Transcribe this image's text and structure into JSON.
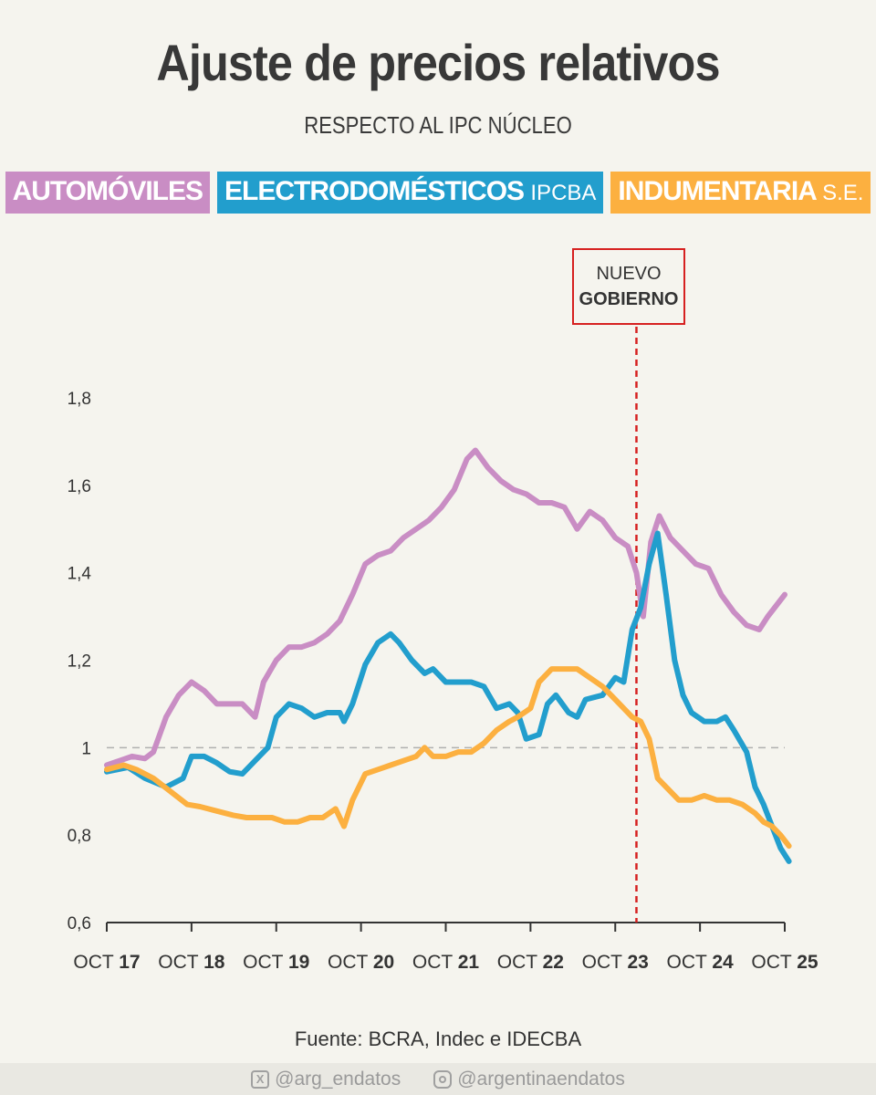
{
  "header": {
    "title": "Ajuste de precios relativos",
    "subtitle": "RESPECTO AL IPC NÚCLEO"
  },
  "legend": [
    {
      "name": "AUTOMÓVILES",
      "suffix": "",
      "color": "#c98dc4"
    },
    {
      "name": "ELECTRODOMÉSTICOS",
      "suffix": "IPCBA",
      "color": "#229ecd"
    },
    {
      "name": "INDUMENTARIA",
      "suffix": "S.E.",
      "color": "#fcb040"
    }
  ],
  "annotation": {
    "line1": "NUEVO",
    "line2": "GOBIERNO",
    "color": "#d62020"
  },
  "source": "Fuente: BCRA, Indec e IDECBA",
  "footer": {
    "twitter": "@arg_endatos",
    "instagram": "@argentinaendatos",
    "twitter_icon": "x-icon",
    "instagram_icon": "instagram-icon"
  },
  "chart_data": {
    "type": "line",
    "xlim": [
      2017.75,
      2025.75
    ],
    "ylim": [
      0.6,
      1.8
    ],
    "yticks": [
      {
        "value": 0.6,
        "label": "0,6"
      },
      {
        "value": 0.8,
        "label": "0,8"
      },
      {
        "value": 1.0,
        "label": "1"
      },
      {
        "value": 1.2,
        "label": "1,2"
      },
      {
        "value": 1.4,
        "label": "1,4"
      },
      {
        "value": 1.6,
        "label": "1,6"
      },
      {
        "value": 1.8,
        "label": "1,8"
      }
    ],
    "xticks": [
      {
        "value": 2017.75,
        "pre": "OCT ",
        "year": "17"
      },
      {
        "value": 2018.75,
        "pre": "OCT ",
        "year": "18"
      },
      {
        "value": 2019.75,
        "pre": "OCT ",
        "year": "19"
      },
      {
        "value": 2020.75,
        "pre": "OCT ",
        "year": "20"
      },
      {
        "value": 2021.75,
        "pre": "OCT ",
        "year": "21"
      },
      {
        "value": 2022.75,
        "pre": "OCT ",
        "year": "22"
      },
      {
        "value": 2023.75,
        "pre": "OCT ",
        "year": "23"
      },
      {
        "value": 2024.75,
        "pre": "OCT ",
        "year": "24"
      },
      {
        "value": 2025.75,
        "pre": "OCT ",
        "year": "25"
      }
    ],
    "reference_line": 1.0,
    "event_x": 2024.0,
    "series": [
      {
        "name": "AUTOMÓVILES",
        "color": "#c98dc4",
        "points": [
          [
            2017.75,
            0.96
          ],
          [
            2017.9,
            0.97
          ],
          [
            2018.05,
            0.98
          ],
          [
            2018.2,
            0.975
          ],
          [
            2018.3,
            0.99
          ],
          [
            2018.45,
            1.07
          ],
          [
            2018.6,
            1.12
          ],
          [
            2018.75,
            1.15
          ],
          [
            2018.9,
            1.13
          ],
          [
            2019.05,
            1.1
          ],
          [
            2019.2,
            1.1
          ],
          [
            2019.35,
            1.1
          ],
          [
            2019.5,
            1.07
          ],
          [
            2019.6,
            1.15
          ],
          [
            2019.75,
            1.2
          ],
          [
            2019.9,
            1.23
          ],
          [
            2020.05,
            1.23
          ],
          [
            2020.2,
            1.24
          ],
          [
            2020.35,
            1.26
          ],
          [
            2020.5,
            1.29
          ],
          [
            2020.65,
            1.35
          ],
          [
            2020.8,
            1.42
          ],
          [
            2020.95,
            1.44
          ],
          [
            2021.1,
            1.45
          ],
          [
            2021.25,
            1.48
          ],
          [
            2021.4,
            1.5
          ],
          [
            2021.55,
            1.52
          ],
          [
            2021.7,
            1.55
          ],
          [
            2021.85,
            1.59
          ],
          [
            2022.0,
            1.66
          ],
          [
            2022.1,
            1.68
          ],
          [
            2022.25,
            1.64
          ],
          [
            2022.4,
            1.61
          ],
          [
            2022.55,
            1.59
          ],
          [
            2022.7,
            1.58
          ],
          [
            2022.85,
            1.56
          ],
          [
            2023.0,
            1.56
          ],
          [
            2023.15,
            1.55
          ],
          [
            2023.3,
            1.5
          ],
          [
            2023.45,
            1.54
          ],
          [
            2023.6,
            1.52
          ],
          [
            2023.75,
            1.48
          ],
          [
            2023.9,
            1.46
          ],
          [
            2024.0,
            1.4
          ],
          [
            2024.08,
            1.3
          ],
          [
            2024.17,
            1.47
          ],
          [
            2024.27,
            1.53
          ],
          [
            2024.4,
            1.48
          ],
          [
            2024.55,
            1.45
          ],
          [
            2024.7,
            1.42
          ],
          [
            2024.85,
            1.41
          ],
          [
            2025.0,
            1.35
          ],
          [
            2025.15,
            1.31
          ],
          [
            2025.3,
            1.28
          ],
          [
            2025.45,
            1.27
          ],
          [
            2025.55,
            1.3
          ],
          [
            2025.75,
            1.35
          ]
        ]
      },
      {
        "name": "ELECTRODOMÉSTICOS IPCBA",
        "color": "#229ecd",
        "points": [
          [
            2017.75,
            0.945
          ],
          [
            2018.0,
            0.955
          ],
          [
            2018.2,
            0.93
          ],
          [
            2018.45,
            0.91
          ],
          [
            2018.65,
            0.93
          ],
          [
            2018.75,
            0.98
          ],
          [
            2018.9,
            0.98
          ],
          [
            2019.05,
            0.965
          ],
          [
            2019.2,
            0.945
          ],
          [
            2019.35,
            0.94
          ],
          [
            2019.5,
            0.97
          ],
          [
            2019.65,
            1.0
          ],
          [
            2019.75,
            1.07
          ],
          [
            2019.9,
            1.1
          ],
          [
            2020.05,
            1.09
          ],
          [
            2020.2,
            1.07
          ],
          [
            2020.35,
            1.08
          ],
          [
            2020.5,
            1.08
          ],
          [
            2020.55,
            1.06
          ],
          [
            2020.65,
            1.1
          ],
          [
            2020.8,
            1.19
          ],
          [
            2020.95,
            1.24
          ],
          [
            2021.1,
            1.26
          ],
          [
            2021.2,
            1.24
          ],
          [
            2021.35,
            1.2
          ],
          [
            2021.5,
            1.17
          ],
          [
            2021.6,
            1.18
          ],
          [
            2021.75,
            1.15
          ],
          [
            2021.9,
            1.15
          ],
          [
            2022.05,
            1.15
          ],
          [
            2022.2,
            1.14
          ],
          [
            2022.35,
            1.09
          ],
          [
            2022.5,
            1.1
          ],
          [
            2022.6,
            1.08
          ],
          [
            2022.7,
            1.02
          ],
          [
            2022.85,
            1.03
          ],
          [
            2022.95,
            1.1
          ],
          [
            2023.05,
            1.12
          ],
          [
            2023.2,
            1.08
          ],
          [
            2023.3,
            1.07
          ],
          [
            2023.4,
            1.11
          ],
          [
            2023.6,
            1.12
          ],
          [
            2023.75,
            1.16
          ],
          [
            2023.85,
            1.15
          ],
          [
            2023.95,
            1.27
          ],
          [
            2024.05,
            1.32
          ],
          [
            2024.15,
            1.42
          ],
          [
            2024.25,
            1.49
          ],
          [
            2024.35,
            1.35
          ],
          [
            2024.45,
            1.2
          ],
          [
            2024.55,
            1.12
          ],
          [
            2024.65,
            1.08
          ],
          [
            2024.8,
            1.06
          ],
          [
            2024.95,
            1.06
          ],
          [
            2025.05,
            1.07
          ],
          [
            2025.15,
            1.04
          ],
          [
            2025.3,
            0.99
          ],
          [
            2025.4,
            0.91
          ],
          [
            2025.5,
            0.87
          ],
          [
            2025.6,
            0.82
          ],
          [
            2025.7,
            0.77
          ],
          [
            2025.8,
            0.74
          ]
        ]
      },
      {
        "name": "INDUMENTARIA S.E.",
        "color": "#fcb040",
        "points": [
          [
            2017.75,
            0.95
          ],
          [
            2017.95,
            0.96
          ],
          [
            2018.1,
            0.95
          ],
          [
            2018.3,
            0.93
          ],
          [
            2018.5,
            0.9
          ],
          [
            2018.7,
            0.87
          ],
          [
            2018.85,
            0.865
          ],
          [
            2019.05,
            0.855
          ],
          [
            2019.25,
            0.845
          ],
          [
            2019.4,
            0.84
          ],
          [
            2019.55,
            0.84
          ],
          [
            2019.7,
            0.84
          ],
          [
            2019.85,
            0.83
          ],
          [
            2020.0,
            0.83
          ],
          [
            2020.15,
            0.84
          ],
          [
            2020.3,
            0.84
          ],
          [
            2020.45,
            0.86
          ],
          [
            2020.55,
            0.82
          ],
          [
            2020.65,
            0.88
          ],
          [
            2020.8,
            0.94
          ],
          [
            2020.95,
            0.95
          ],
          [
            2021.1,
            0.96
          ],
          [
            2021.25,
            0.97
          ],
          [
            2021.4,
            0.98
          ],
          [
            2021.5,
            1.0
          ],
          [
            2021.6,
            0.98
          ],
          [
            2021.75,
            0.98
          ],
          [
            2021.9,
            0.99
          ],
          [
            2022.05,
            0.99
          ],
          [
            2022.2,
            1.01
          ],
          [
            2022.35,
            1.04
          ],
          [
            2022.5,
            1.06
          ],
          [
            2022.6,
            1.07
          ],
          [
            2022.75,
            1.09
          ],
          [
            2022.85,
            1.15
          ],
          [
            2023.0,
            1.18
          ],
          [
            2023.15,
            1.18
          ],
          [
            2023.3,
            1.18
          ],
          [
            2023.45,
            1.16
          ],
          [
            2023.6,
            1.14
          ],
          [
            2023.75,
            1.11
          ],
          [
            2023.85,
            1.09
          ],
          [
            2023.95,
            1.07
          ],
          [
            2024.05,
            1.06
          ],
          [
            2024.15,
            1.02
          ],
          [
            2024.25,
            0.93
          ],
          [
            2024.35,
            0.91
          ],
          [
            2024.5,
            0.88
          ],
          [
            2024.65,
            0.88
          ],
          [
            2024.8,
            0.89
          ],
          [
            2024.95,
            0.88
          ],
          [
            2025.1,
            0.88
          ],
          [
            2025.25,
            0.87
          ],
          [
            2025.4,
            0.85
          ],
          [
            2025.5,
            0.83
          ],
          [
            2025.6,
            0.82
          ],
          [
            2025.7,
            0.8
          ],
          [
            2025.8,
            0.775
          ]
        ]
      }
    ]
  }
}
